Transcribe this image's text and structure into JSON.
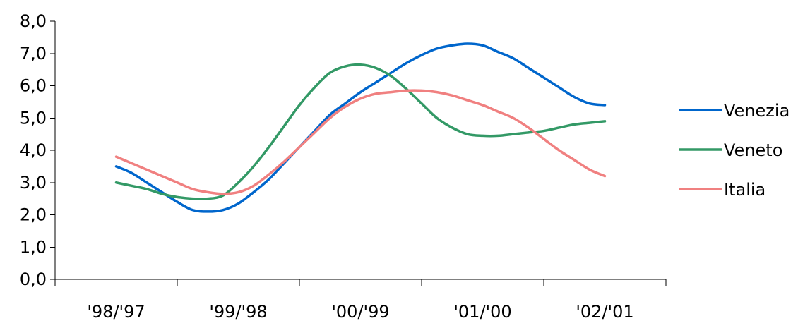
{
  "chart_data": {
    "type": "line",
    "title": "",
    "xlabel": "",
    "ylabel": "",
    "ylim": [
      0,
      8
    ],
    "y_ticks": [
      "0,0",
      "1,0",
      "2,0",
      "3,0",
      "4,0",
      "5,0",
      "6,0",
      "7,0",
      "8,0"
    ],
    "categories": [
      "'98/'97",
      "'99/'98",
      "'00/'99",
      "'01/'00",
      "'02/'01"
    ],
    "x_range": [
      -0.5,
      4.5
    ],
    "grid": false,
    "legend_position": "right",
    "series": [
      {
        "name": "Venezia",
        "color": "#0066CC",
        "x": [
          0,
          0.125,
          0.25,
          0.375,
          0.5,
          0.625,
          0.75,
          0.875,
          1,
          1.125,
          1.25,
          1.375,
          1.5,
          1.625,
          1.75,
          1.875,
          2,
          2.125,
          2.25,
          2.375,
          2.5,
          2.625,
          2.75,
          2.875,
          3,
          3.125,
          3.25,
          3.375,
          3.5,
          3.625,
          3.75,
          3.875,
          4
        ],
        "y": [
          3.5,
          3.3,
          3.0,
          2.7,
          2.4,
          2.15,
          2.1,
          2.15,
          2.35,
          2.7,
          3.1,
          3.6,
          4.1,
          4.6,
          5.1,
          5.45,
          5.8,
          6.1,
          6.4,
          6.7,
          6.95,
          7.15,
          7.25,
          7.3,
          7.25,
          7.05,
          6.85,
          6.55,
          6.25,
          5.95,
          5.65,
          5.45,
          5.4
        ]
      },
      {
        "name": "Veneto",
        "color": "#339966",
        "x": [
          0,
          0.125,
          0.25,
          0.375,
          0.5,
          0.625,
          0.75,
          0.875,
          1,
          1.125,
          1.25,
          1.375,
          1.5,
          1.625,
          1.75,
          1.875,
          2,
          2.125,
          2.25,
          2.375,
          2.5,
          2.625,
          2.75,
          2.875,
          3,
          3.125,
          3.25,
          3.375,
          3.5,
          3.625,
          3.75,
          3.875,
          4
        ],
        "y": [
          3.0,
          2.9,
          2.8,
          2.65,
          2.55,
          2.5,
          2.5,
          2.6,
          3.0,
          3.5,
          4.1,
          4.75,
          5.4,
          5.95,
          6.4,
          6.6,
          6.65,
          6.55,
          6.3,
          5.9,
          5.45,
          5.0,
          4.7,
          4.5,
          4.45,
          4.45,
          4.5,
          4.55,
          4.6,
          4.7,
          4.8,
          4.85,
          4.9
        ]
      },
      {
        "name": "Italia",
        "color": "#F08080",
        "x": [
          0,
          0.125,
          0.25,
          0.375,
          0.5,
          0.625,
          0.75,
          0.875,
          1,
          1.125,
          1.25,
          1.375,
          1.5,
          1.625,
          1.75,
          1.875,
          2,
          2.125,
          2.25,
          2.375,
          2.5,
          2.625,
          2.75,
          2.875,
          3,
          3.125,
          3.25,
          3.375,
          3.5,
          3.625,
          3.75,
          3.875,
          4
        ],
        "y": [
          3.8,
          3.6,
          3.4,
          3.2,
          3.0,
          2.8,
          2.7,
          2.65,
          2.7,
          2.9,
          3.25,
          3.65,
          4.1,
          4.55,
          5.0,
          5.35,
          5.6,
          5.75,
          5.8,
          5.85,
          5.85,
          5.8,
          5.7,
          5.55,
          5.4,
          5.2,
          5.0,
          4.7,
          4.35,
          4.0,
          3.7,
          3.4,
          3.2
        ]
      }
    ]
  }
}
